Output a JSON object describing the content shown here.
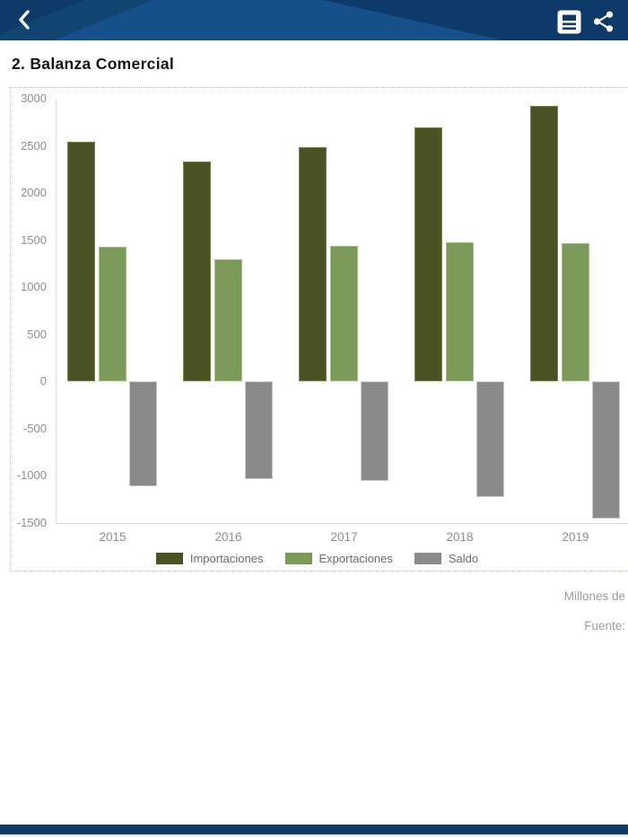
{
  "header": {
    "bg_color": "#0e3a6a",
    "accent_color": "#16508b",
    "icons": {
      "back": "chevron-left-icon",
      "document": "report-document-icon",
      "share": "share-icon"
    }
  },
  "page": {
    "title": "2. Balanza Comercial"
  },
  "chart_data": {
    "type": "bar",
    "title": "",
    "categories": [
      "2015",
      "2016",
      "2017",
      "2018",
      "2019"
    ],
    "series": [
      {
        "name": "Importaciones",
        "color": "#4a5323",
        "border": "#79814e",
        "values": [
          2540,
          2330,
          2490,
          2700,
          2920
        ]
      },
      {
        "name": "Exportaciones",
        "color": "#7b9a58",
        "border": "#a6bf86",
        "values": [
          1430,
          1300,
          1440,
          1480,
          1470
        ]
      },
      {
        "name": "Saldo",
        "color": "#8a8a8a",
        "border": "#c9c9c9",
        "values": [
          -1110,
          -1030,
          -1050,
          -1220,
          -1450
        ]
      }
    ],
    "xlabel": "",
    "ylabel": "",
    "ylim": [
      -1500,
      3000
    ],
    "yticks": [
      3000,
      2500,
      2000,
      1500,
      1000,
      500,
      0,
      -500,
      -1000,
      -1500
    ],
    "grid": false,
    "legend_position": "bottom"
  },
  "footnotes": {
    "units": "Millones de",
    "source": "Fuente:"
  }
}
